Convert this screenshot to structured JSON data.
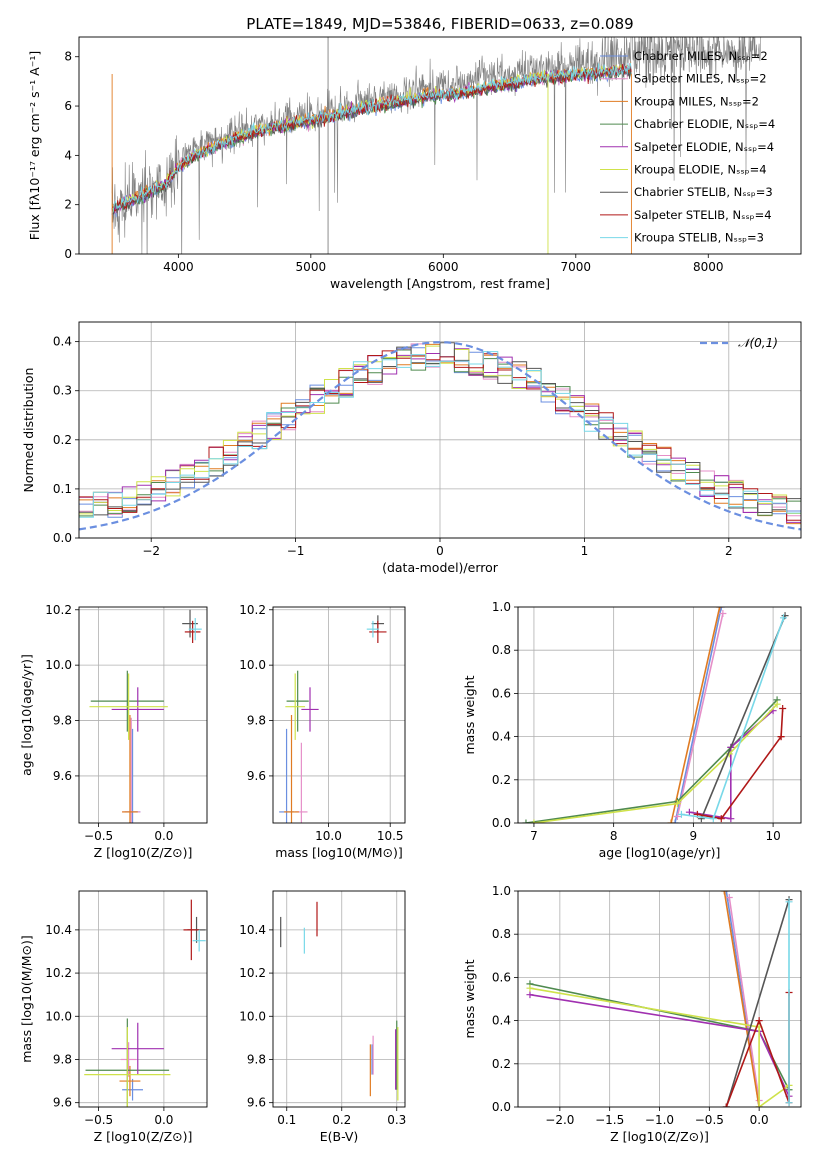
{
  "figure": {
    "title": "PLATE=1849, MJD=53846, FIBERID=0633, z=0.089"
  },
  "colors": {
    "Chabrier MILES": "#6b8fe0",
    "Salpeter MILES": "#e58fc8",
    "Kroupa MILES": "#e07b22",
    "Chabrier ELODIE": "#4f8a4f",
    "Salpeter ELODIE": "#a030b0",
    "Kroupa ELODIE": "#cfe24a",
    "Chabrier STELIB": "#555555",
    "Salpeter STELIB": "#b01818",
    "Kroupa STELIB": "#78d8e8",
    "data": "#808080"
  },
  "chart_data": [
    {
      "id": "spectrum",
      "type": "line",
      "title": "PLATE=1849, MJD=53846, FIBERID=0633, z=0.089",
      "xlabel": "wavelength [Angstrom, rest frame]",
      "ylabel": "Flux [fλ10⁻¹⁷ erg cm⁻² s⁻¹ A⁻¹]",
      "xlim": [
        3250,
        8700
      ],
      "ylim": [
        0,
        8.8
      ],
      "xticks": [
        4000,
        5000,
        6000,
        7000,
        8000
      ],
      "yticks": [
        0,
        2,
        4,
        6,
        8
      ],
      "legend_position": "top-right",
      "x": [
        3500,
        3700,
        3900,
        4000,
        4100,
        4300,
        4500,
        4700,
        4900,
        5100,
        5300,
        5500,
        5700,
        5900,
        6100,
        6300,
        6500,
        6700,
        6900,
        7100,
        7300,
        7420
      ],
      "data_values": [
        1.7,
        2.3,
        2.9,
        3.6,
        4.2,
        4.7,
        5.0,
        5.3,
        5.6,
        5.8,
        6.1,
        6.3,
        6.5,
        6.8,
        7.0,
        7.2,
        7.3,
        7.5,
        7.6,
        7.8,
        8.0,
        8.1
      ],
      "model_values": [
        1.8,
        2.3,
        2.8,
        3.5,
        3.9,
        4.4,
        4.8,
        5.1,
        5.3,
        5.5,
        5.8,
        6.0,
        6.2,
        6.4,
        6.5,
        6.7,
        6.9,
        7.1,
        7.2,
        7.3,
        7.4,
        7.5
      ],
      "series": [
        {
          "name": "Chabrier MILES, N_SSP=2"
        },
        {
          "name": "Salpeter MILES, N_SSP=2"
        },
        {
          "name": "Kroupa MILES, N_SSP=2"
        },
        {
          "name": "Chabrier ELODIE, N_SSP=4"
        },
        {
          "name": "Salpeter ELODIE, N_SSP=4"
        },
        {
          "name": "Kroupa ELODIE, N_SSP=4"
        },
        {
          "name": "Chabrier STELIB, N_SSP=3"
        },
        {
          "name": "Salpeter STELIB, N_SSP=4"
        },
        {
          "name": "Kroupa STELIB, N_SSP=3"
        }
      ],
      "legend_labels": [
        "Chabrier MILES, Nₛₛₚ=2",
        "Salpeter MILES, Nₛₛₚ=2",
        "Kroupa MILES, Nₛₛₚ=2",
        "Chabrier ELODIE, Nₛₛₚ=4",
        "Salpeter ELODIE, Nₛₛₚ=4",
        "Kroupa ELODIE, Nₛₛₚ=4",
        "Chabrier STELIB, Nₛₛₚ=3",
        "Salpeter STELIB, Nₛₛₚ=4",
        "Kroupa STELIB, Nₛₛₚ=3"
      ]
    },
    {
      "id": "residuals",
      "type": "histogram",
      "xlabel": "(data-model)/error",
      "ylabel": "Normed distribution",
      "xlim": [
        -2.5,
        2.5
      ],
      "ylim": [
        0,
        0.44
      ],
      "xticks": [
        -2,
        -1,
        0,
        1,
        2
      ],
      "yticks": [
        0.0,
        0.1,
        0.2,
        0.3,
        0.4
      ],
      "legend": "𝒩(0,1)",
      "bin_width": 0.1,
      "bin_start": -2.5,
      "reference_curve": "normal(0,1)"
    },
    {
      "id": "age-vs-Z",
      "type": "errorbar",
      "xlabel": "Z [log10(Z/Z⊙)]",
      "ylabel": "age  [log10(age/yr)]",
      "xlim": [
        -0.65,
        0.33
      ],
      "ylim": [
        9.43,
        10.21
      ],
      "xticks": [
        -0.5,
        0.0
      ],
      "yticks": [
        9.6,
        9.8,
        10.0,
        10.2
      ],
      "points": [
        {
          "series": "Chabrier MILES",
          "x": -0.24,
          "y": 9.47,
          "xerr": 0.06,
          "yerr": 0.3
        },
        {
          "series": "Salpeter MILES",
          "x": -0.25,
          "y": 9.47,
          "xerr": 0.07,
          "yerr": 0.34
        },
        {
          "series": "Kroupa MILES",
          "x": -0.26,
          "y": 9.47,
          "xerr": 0.06,
          "yerr": 0.35
        },
        {
          "series": "Chabrier ELODIE",
          "x": -0.28,
          "y": 9.87,
          "xerr": 0.28,
          "yerr": 0.11
        },
        {
          "series": "Salpeter ELODIE",
          "x": -0.2,
          "y": 9.84,
          "xerr": 0.2,
          "yerr": 0.08
        },
        {
          "series": "Kroupa ELODIE",
          "x": -0.27,
          "y": 9.85,
          "xerr": 0.3,
          "yerr": 0.12
        },
        {
          "series": "Chabrier STELIB",
          "x": 0.2,
          "y": 10.15,
          "xerr": 0.06,
          "yerr": 0.05
        },
        {
          "series": "Salpeter STELIB",
          "x": 0.22,
          "y": 10.12,
          "xerr": 0.06,
          "yerr": 0.04
        },
        {
          "series": "Kroupa STELIB",
          "x": 0.24,
          "y": 10.13,
          "xerr": 0.05,
          "yerr": 0.04
        }
      ]
    },
    {
      "id": "age-vs-mass",
      "type": "errorbar",
      "xlabel": "mass [log10(M/M⊙)]",
      "ylabel": "",
      "xlim": [
        9.55,
        10.62
      ],
      "ylim": [
        9.43,
        10.21
      ],
      "xticks": [
        10.0,
        10.5
      ],
      "yticks": [
        9.6,
        9.8,
        10.0,
        10.2
      ],
      "points": [
        {
          "series": "Chabrier MILES",
          "x": 9.66,
          "y": 9.47,
          "xerr": 0.06,
          "yerr": 0.3
        },
        {
          "series": "Salpeter MILES",
          "x": 9.78,
          "y": 9.47,
          "xerr": 0.05,
          "yerr": 0.25
        },
        {
          "series": "Kroupa MILES",
          "x": 9.7,
          "y": 9.47,
          "xerr": 0.06,
          "yerr": 0.35
        },
        {
          "series": "Chabrier ELODIE",
          "x": 9.75,
          "y": 9.87,
          "xerr": 0.09,
          "yerr": 0.11
        },
        {
          "series": "Salpeter ELODIE",
          "x": 9.85,
          "y": 9.84,
          "xerr": 0.07,
          "yerr": 0.08
        },
        {
          "series": "Kroupa ELODIE",
          "x": 9.73,
          "y": 9.85,
          "xerr": 0.08,
          "yerr": 0.12
        },
        {
          "series": "Chabrier STELIB",
          "x": 10.4,
          "y": 10.15,
          "xerr": 0.05,
          "yerr": 0.03
        },
        {
          "series": "Salpeter STELIB",
          "x": 10.4,
          "y": 10.12,
          "xerr": 0.07,
          "yerr": 0.04
        },
        {
          "series": "Kroupa STELIB",
          "x": 10.36,
          "y": 10.13,
          "xerr": 0.05,
          "yerr": 0.03
        }
      ]
    },
    {
      "id": "weight-vs-age",
      "type": "line",
      "xlabel": "age  [log10(age/yr)]",
      "ylabel": "mass weight",
      "xlim": [
        6.8,
        10.35
      ],
      "ylim": [
        0,
        1
      ],
      "xticks": [
        7,
        8,
        9,
        10
      ],
      "yticks": [
        0.0,
        0.2,
        0.4,
        0.6,
        0.8,
        1.0
      ],
      "series": [
        {
          "series": "Chabrier MILES",
          "x": [
            8.77,
            9.35
          ],
          "y": [
            0.0,
            1.0
          ]
        },
        {
          "series": "Salpeter MILES",
          "x": [
            8.8,
            9.37
          ],
          "y": [
            0.03,
            0.97
          ]
        },
        {
          "series": "Kroupa MILES",
          "x": [
            8.72,
            9.33
          ],
          "y": [
            0.0,
            1.0
          ]
        },
        {
          "series": "Chabrier ELODIE",
          "x": [
            6.9,
            8.8,
            9.47,
            10.05
          ],
          "y": [
            0.0,
            0.1,
            0.35,
            0.57
          ]
        },
        {
          "series": "Salpeter ELODIE",
          "x": [
            8.95,
            9.47,
            9.47,
            10.0
          ],
          "y": [
            0.05,
            0.02,
            0.35,
            0.52
          ]
        },
        {
          "series": "Kroupa ELODIE",
          "x": [
            7.0,
            8.8,
            9.45,
            10.05
          ],
          "y": [
            0.0,
            0.09,
            0.32,
            0.55
          ]
        },
        {
          "series": "Chabrier STELIB",
          "x": [
            9.1,
            10.15
          ],
          "y": [
            0.02,
            0.96
          ]
        },
        {
          "series": "Salpeter STELIB",
          "x": [
            9.05,
            9.35,
            10.1,
            10.12,
            10.1
          ],
          "y": [
            0.04,
            0.02,
            0.4,
            0.53,
            0.4
          ]
        },
        {
          "series": "Kroupa STELIB",
          "x": [
            8.85,
            9.25,
            10.13
          ],
          "y": [
            0.04,
            0.02,
            0.95
          ]
        }
      ]
    },
    {
      "id": "mass-vs-Z",
      "type": "errorbar",
      "xlabel": "Z [log10(Z/Z⊙)]",
      "ylabel": "mass [log10(M/M⊙)]",
      "xlim": [
        -0.65,
        0.33
      ],
      "ylim": [
        9.58,
        10.58
      ],
      "xticks": [
        -0.5,
        0.0
      ],
      "yticks": [
        9.6,
        9.8,
        10.0,
        10.2,
        10.4
      ],
      "points": [
        {
          "series": "Chabrier MILES",
          "x": -0.24,
          "y": 9.66,
          "xerr": 0.08,
          "yerr": 0.05
        },
        {
          "series": "Salpeter MILES",
          "x": -0.27,
          "y": 9.8,
          "xerr": 0.06,
          "yerr": 0.08
        },
        {
          "series": "Kroupa MILES",
          "x": -0.26,
          "y": 9.7,
          "xerr": 0.08,
          "yerr": 0.07
        },
        {
          "series": "Chabrier ELODIE",
          "x": -0.28,
          "y": 9.75,
          "xerr": 0.32,
          "yerr": 0.24
        },
        {
          "series": "Salpeter ELODIE",
          "x": -0.2,
          "y": 9.85,
          "xerr": 0.2,
          "yerr": 0.12
        },
        {
          "series": "Kroupa ELODIE",
          "x": -0.28,
          "y": 9.73,
          "xerr": 0.33,
          "yerr": 0.22
        },
        {
          "series": "Chabrier STELIB",
          "x": 0.25,
          "y": 10.4,
          "xerr": 0.07,
          "yerr": 0.06
        },
        {
          "series": "Salpeter STELIB",
          "x": 0.21,
          "y": 10.4,
          "xerr": 0.06,
          "yerr": 0.14
        },
        {
          "series": "Kroupa STELIB",
          "x": 0.27,
          "y": 10.35,
          "xerr": 0.05,
          "yerr": 0.05
        }
      ]
    },
    {
      "id": "mass-vs-ebv",
      "type": "errorbar",
      "xlabel": "E(B-V)",
      "ylabel": "",
      "xlim": [
        0.075,
        0.315
      ],
      "ylim": [
        9.58,
        10.58
      ],
      "xticks": [
        0.1,
        0.2,
        0.3
      ],
      "yticks": [
        9.6,
        9.8,
        10.0,
        10.2,
        10.4
      ],
      "points": [
        {
          "series": "Chabrier MILES",
          "x": 0.255,
          "y": 9.8,
          "yerr": 0.07
        },
        {
          "series": "Salpeter MILES",
          "x": 0.257,
          "y": 9.82,
          "yerr": 0.09
        },
        {
          "series": "Kroupa MILES",
          "x": 0.252,
          "y": 9.75,
          "yerr": 0.12
        },
        {
          "series": "Chabrier ELODIE",
          "x": 0.3,
          "y": 9.82,
          "yerr": 0.16
        },
        {
          "series": "Salpeter ELODIE",
          "x": 0.298,
          "y": 9.8,
          "yerr": 0.14
        },
        {
          "series": "Kroupa ELODIE",
          "x": 0.302,
          "y": 9.78,
          "yerr": 0.17
        },
        {
          "series": "Chabrier STELIB",
          "x": 0.089,
          "y": 10.39,
          "yerr": 0.07
        },
        {
          "series": "Salpeter STELIB",
          "x": 0.155,
          "y": 10.45,
          "yerr": 0.08
        },
        {
          "series": "Kroupa STELIB",
          "x": 0.132,
          "y": 10.35,
          "yerr": 0.06
        }
      ]
    },
    {
      "id": "weight-vs-Z",
      "type": "line",
      "xlabel": "Z [log10(Z/Z⊙)]",
      "ylabel": "mass weight",
      "xlim": [
        -2.42,
        0.42
      ],
      "ylim": [
        0,
        1
      ],
      "xticks": [
        -2.0,
        -1.5,
        -1.0,
        -0.5,
        0.0
      ],
      "yticks": [
        0.0,
        0.2,
        0.4,
        0.6,
        0.8,
        1.0
      ],
      "series": [
        {
          "series": "Chabrier MILES",
          "x": [
            -0.33,
            0.0
          ],
          "y": [
            1.0,
            0.0
          ]
        },
        {
          "series": "Salpeter MILES",
          "x": [
            -0.3,
            0.0
          ],
          "y": [
            0.97,
            0.03
          ]
        },
        {
          "series": "Kroupa MILES",
          "x": [
            -0.35,
            0.0
          ],
          "y": [
            1.0,
            0.0
          ]
        },
        {
          "series": "Chabrier ELODIE",
          "x": [
            -2.3,
            0.0,
            0.3
          ],
          "y": [
            0.57,
            0.35,
            0.08
          ]
        },
        {
          "series": "Salpeter ELODIE",
          "x": [
            -2.3,
            0.0,
            0.3
          ],
          "y": [
            0.52,
            0.35,
            0.05
          ]
        },
        {
          "series": "Kroupa ELODIE",
          "x": [
            -2.3,
            0.0,
            0.0,
            0.3
          ],
          "y": [
            0.55,
            0.37,
            0.0,
            0.1
          ]
        },
        {
          "series": "Chabrier STELIB",
          "x": [
            -0.33,
            0.3
          ],
          "y": [
            0.0,
            0.96
          ]
        },
        {
          "series": "Salpeter STELIB",
          "x": [
            -0.33,
            0.0,
            0.3,
            0.3
          ],
          "y": [
            0.0,
            0.4,
            0.02,
            0.53
          ]
        },
        {
          "series": "Kroupa STELIB",
          "x": [
            0.3,
            0.3
          ],
          "y": [
            0.02,
            0.95
          ]
        }
      ]
    }
  ]
}
